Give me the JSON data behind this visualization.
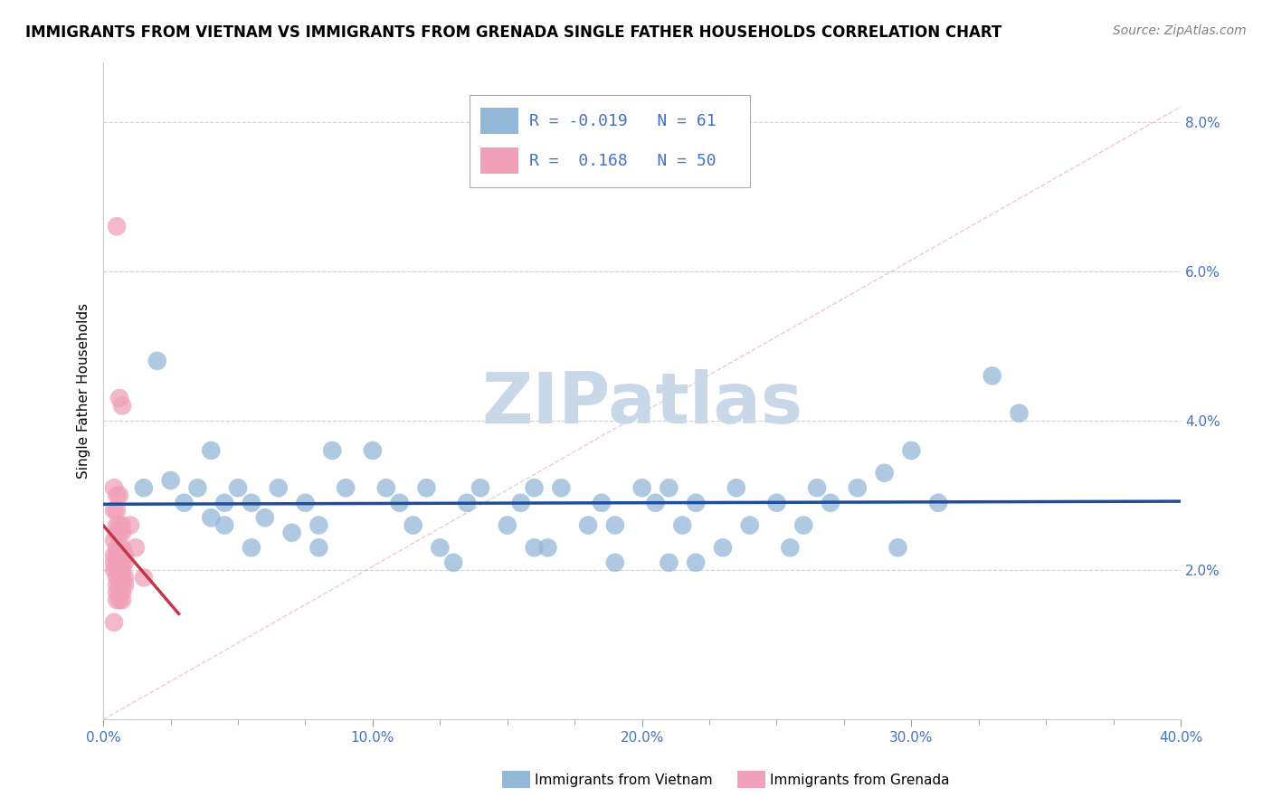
{
  "title": "IMMIGRANTS FROM VIETNAM VS IMMIGRANTS FROM GRENADA SINGLE FATHER HOUSEHOLDS CORRELATION CHART",
  "source": "Source: ZipAtlas.com",
  "xlim": [
    0.0,
    0.4
  ],
  "ylim": [
    0.0,
    0.088
  ],
  "ylabel": "Single Father Households",
  "legend_R_N": [
    {
      "R": "-0.019",
      "N": "61",
      "color": "#a8c4e0"
    },
    {
      "R": "0.168",
      "N": "50",
      "color": "#f4b8c4"
    }
  ],
  "watermark": "ZIPatlas",
  "vietnam_color": "#93b8d8",
  "grenada_color": "#f0a0b8",
  "vietnam_line_color": "#1f4e9c",
  "grenada_line_color": "#c0384a",
  "diagonal_color": "#f0a0b8",
  "grid_color": "#d0d0d0",
  "ytick_color": "#4472c4",
  "xtick_color": "#4472c4",
  "watermark_color": "#c8d8e8",
  "vietnam_scatter": [
    [
      0.015,
      0.031
    ],
    [
      0.02,
      0.048
    ],
    [
      0.025,
      0.032
    ],
    [
      0.03,
      0.029
    ],
    [
      0.035,
      0.031
    ],
    [
      0.04,
      0.027
    ],
    [
      0.04,
      0.036
    ],
    [
      0.045,
      0.029
    ],
    [
      0.05,
      0.031
    ],
    [
      0.055,
      0.029
    ],
    [
      0.06,
      0.027
    ],
    [
      0.065,
      0.031
    ],
    [
      0.07,
      0.025
    ],
    [
      0.075,
      0.029
    ],
    [
      0.08,
      0.026
    ],
    [
      0.085,
      0.036
    ],
    [
      0.09,
      0.031
    ],
    [
      0.1,
      0.036
    ],
    [
      0.105,
      0.031
    ],
    [
      0.11,
      0.029
    ],
    [
      0.115,
      0.026
    ],
    [
      0.12,
      0.031
    ],
    [
      0.125,
      0.023
    ],
    [
      0.135,
      0.029
    ],
    [
      0.14,
      0.031
    ],
    [
      0.15,
      0.026
    ],
    [
      0.155,
      0.029
    ],
    [
      0.16,
      0.031
    ],
    [
      0.165,
      0.023
    ],
    [
      0.17,
      0.031
    ],
    [
      0.18,
      0.026
    ],
    [
      0.185,
      0.029
    ],
    [
      0.19,
      0.026
    ],
    [
      0.2,
      0.031
    ],
    [
      0.205,
      0.029
    ],
    [
      0.21,
      0.031
    ],
    [
      0.215,
      0.026
    ],
    [
      0.22,
      0.029
    ],
    [
      0.23,
      0.023
    ],
    [
      0.235,
      0.031
    ],
    [
      0.24,
      0.026
    ],
    [
      0.25,
      0.029
    ],
    [
      0.26,
      0.026
    ],
    [
      0.265,
      0.031
    ],
    [
      0.27,
      0.029
    ],
    [
      0.28,
      0.031
    ],
    [
      0.29,
      0.033
    ],
    [
      0.3,
      0.036
    ],
    [
      0.33,
      0.046
    ],
    [
      0.34,
      0.041
    ],
    [
      0.22,
      0.021
    ],
    [
      0.19,
      0.021
    ],
    [
      0.16,
      0.023
    ],
    [
      0.13,
      0.021
    ],
    [
      0.08,
      0.023
    ],
    [
      0.045,
      0.026
    ],
    [
      0.055,
      0.023
    ],
    [
      0.21,
      0.021
    ],
    [
      0.255,
      0.023
    ],
    [
      0.31,
      0.029
    ],
    [
      0.295,
      0.023
    ]
  ],
  "grenada_scatter": [
    [
      0.005,
      0.066
    ],
    [
      0.006,
      0.043
    ],
    [
      0.007,
      0.042
    ],
    [
      0.004,
      0.031
    ],
    [
      0.005,
      0.03
    ],
    [
      0.006,
      0.03
    ],
    [
      0.004,
      0.028
    ],
    [
      0.005,
      0.028
    ],
    [
      0.005,
      0.026
    ],
    [
      0.006,
      0.026
    ],
    [
      0.007,
      0.026
    ],
    [
      0.005,
      0.025
    ],
    [
      0.006,
      0.025
    ],
    [
      0.007,
      0.025
    ],
    [
      0.004,
      0.024
    ],
    [
      0.005,
      0.023
    ],
    [
      0.006,
      0.023
    ],
    [
      0.007,
      0.023
    ],
    [
      0.004,
      0.022
    ],
    [
      0.005,
      0.022
    ],
    [
      0.006,
      0.022
    ],
    [
      0.007,
      0.022
    ],
    [
      0.008,
      0.022
    ],
    [
      0.004,
      0.021
    ],
    [
      0.005,
      0.021
    ],
    [
      0.006,
      0.021
    ],
    [
      0.007,
      0.021
    ],
    [
      0.008,
      0.021
    ],
    [
      0.004,
      0.02
    ],
    [
      0.005,
      0.02
    ],
    [
      0.006,
      0.02
    ],
    [
      0.007,
      0.02
    ],
    [
      0.005,
      0.019
    ],
    [
      0.006,
      0.019
    ],
    [
      0.007,
      0.019
    ],
    [
      0.008,
      0.019
    ],
    [
      0.005,
      0.018
    ],
    [
      0.006,
      0.018
    ],
    [
      0.007,
      0.018
    ],
    [
      0.008,
      0.018
    ],
    [
      0.005,
      0.017
    ],
    [
      0.006,
      0.017
    ],
    [
      0.007,
      0.017
    ],
    [
      0.005,
      0.016
    ],
    [
      0.006,
      0.016
    ],
    [
      0.007,
      0.016
    ],
    [
      0.01,
      0.026
    ],
    [
      0.012,
      0.023
    ],
    [
      0.015,
      0.019
    ],
    [
      0.004,
      0.013
    ]
  ]
}
